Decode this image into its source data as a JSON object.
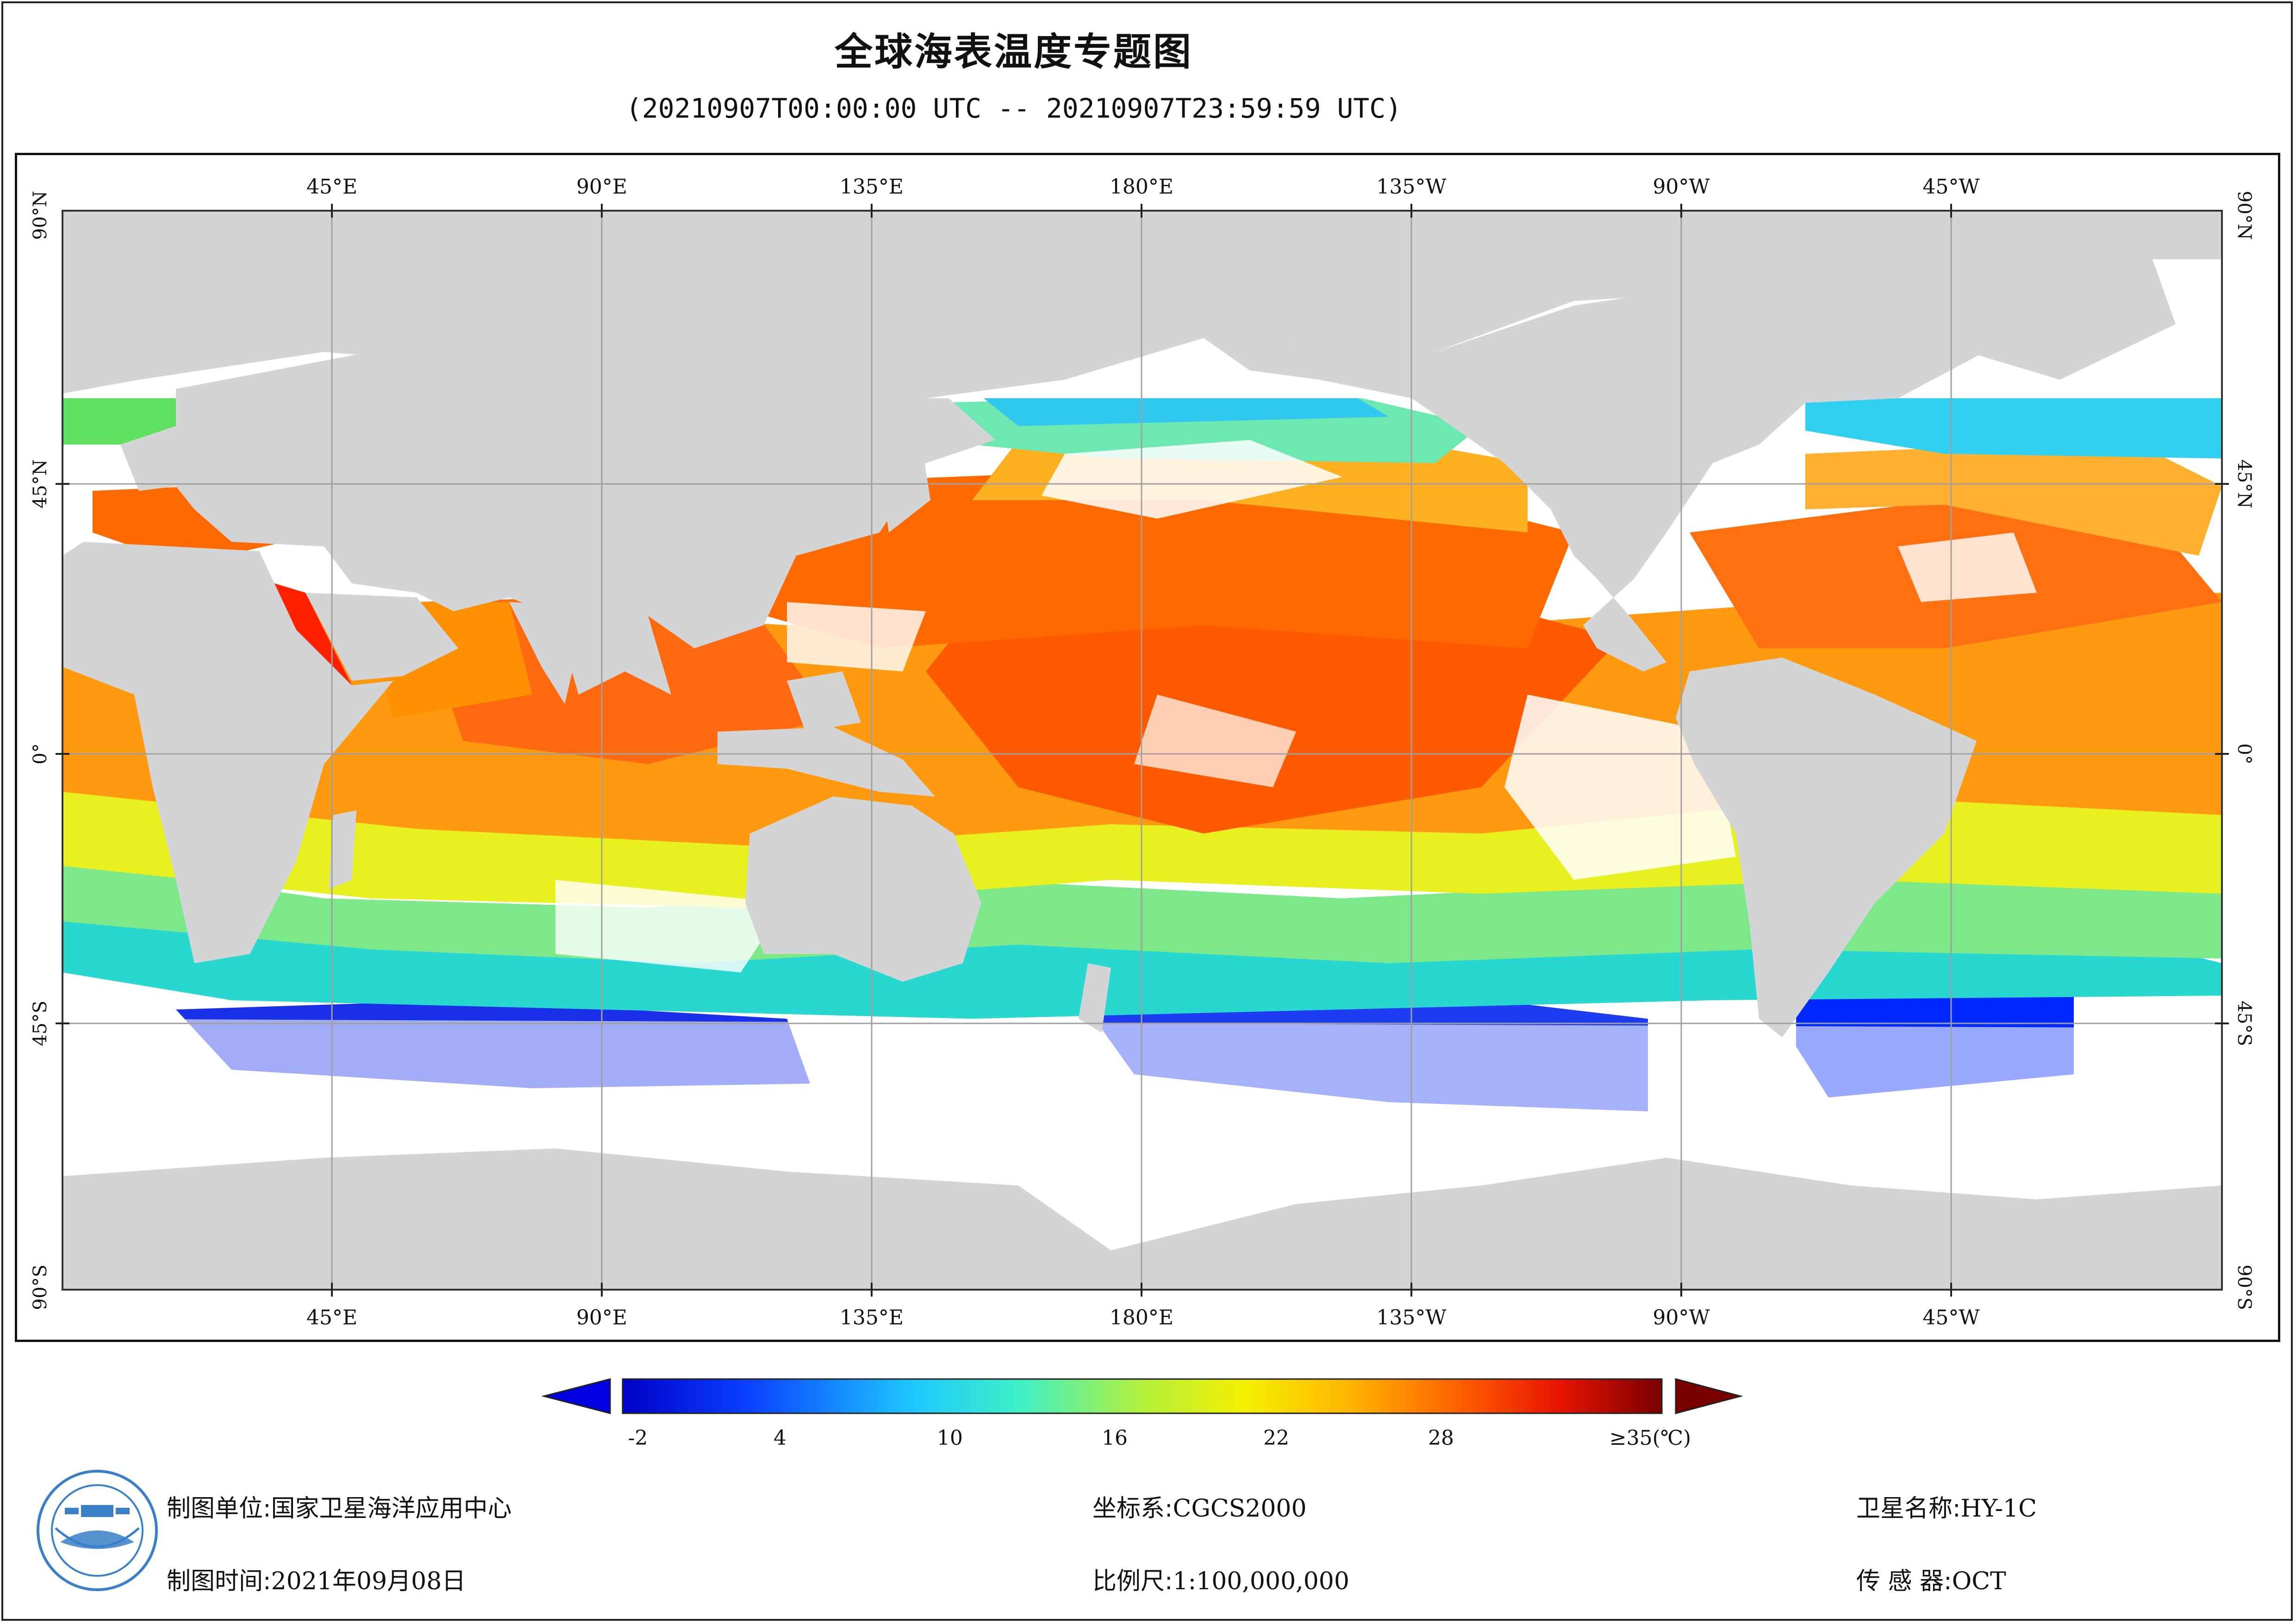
{
  "title": "全球海表温度专题图",
  "subtitle": "(20210907T00:00:00 UTC -- 20210907T23:59:59 UTC)",
  "map": {
    "top_lon_labels": [
      "45°E",
      "90°E",
      "135°E",
      "180°E",
      "135°W",
      "90°W",
      "45°W"
    ],
    "bottom_lon_labels": [
      "45°E",
      "90°E",
      "135°E",
      "180°E",
      "135°W",
      "90°W",
      "45°W"
    ],
    "lat_labels": [
      "90°N",
      "45°N",
      "0°",
      "45°S",
      "90°S"
    ],
    "colors": {
      "land": "#d3d4d6",
      "cloud": "#ffffff",
      "grid": "#a0a0a0"
    }
  },
  "colorbar": {
    "tick_labels": [
      "-2",
      "4",
      "10",
      "16",
      "22",
      "28",
      "≥35(℃)"
    ],
    "min_value": -2,
    "max_value": 35,
    "colors": [
      "#0000c8",
      "#0a40ff",
      "#1ec8ff",
      "#3cf0c8",
      "#b4f03c",
      "#f5f000",
      "#ffb400",
      "#ff6400",
      "#e81400",
      "#7a0000"
    ]
  },
  "footer": {
    "unit_label": "制图单位:",
    "unit_value": "国家卫星海洋应用中心",
    "time_label": "制图时间:",
    "time_value": "2021年09月08日",
    "crs_label": "坐标系:",
    "crs_value": "CGCS2000",
    "scale_label": "比例尺:",
    "scale_value": "1:100,000,000",
    "satellite_label": "卫星名称:",
    "satellite_value": "HY-1C",
    "sensor_label": "传 感 器:",
    "sensor_value": "OCT"
  }
}
